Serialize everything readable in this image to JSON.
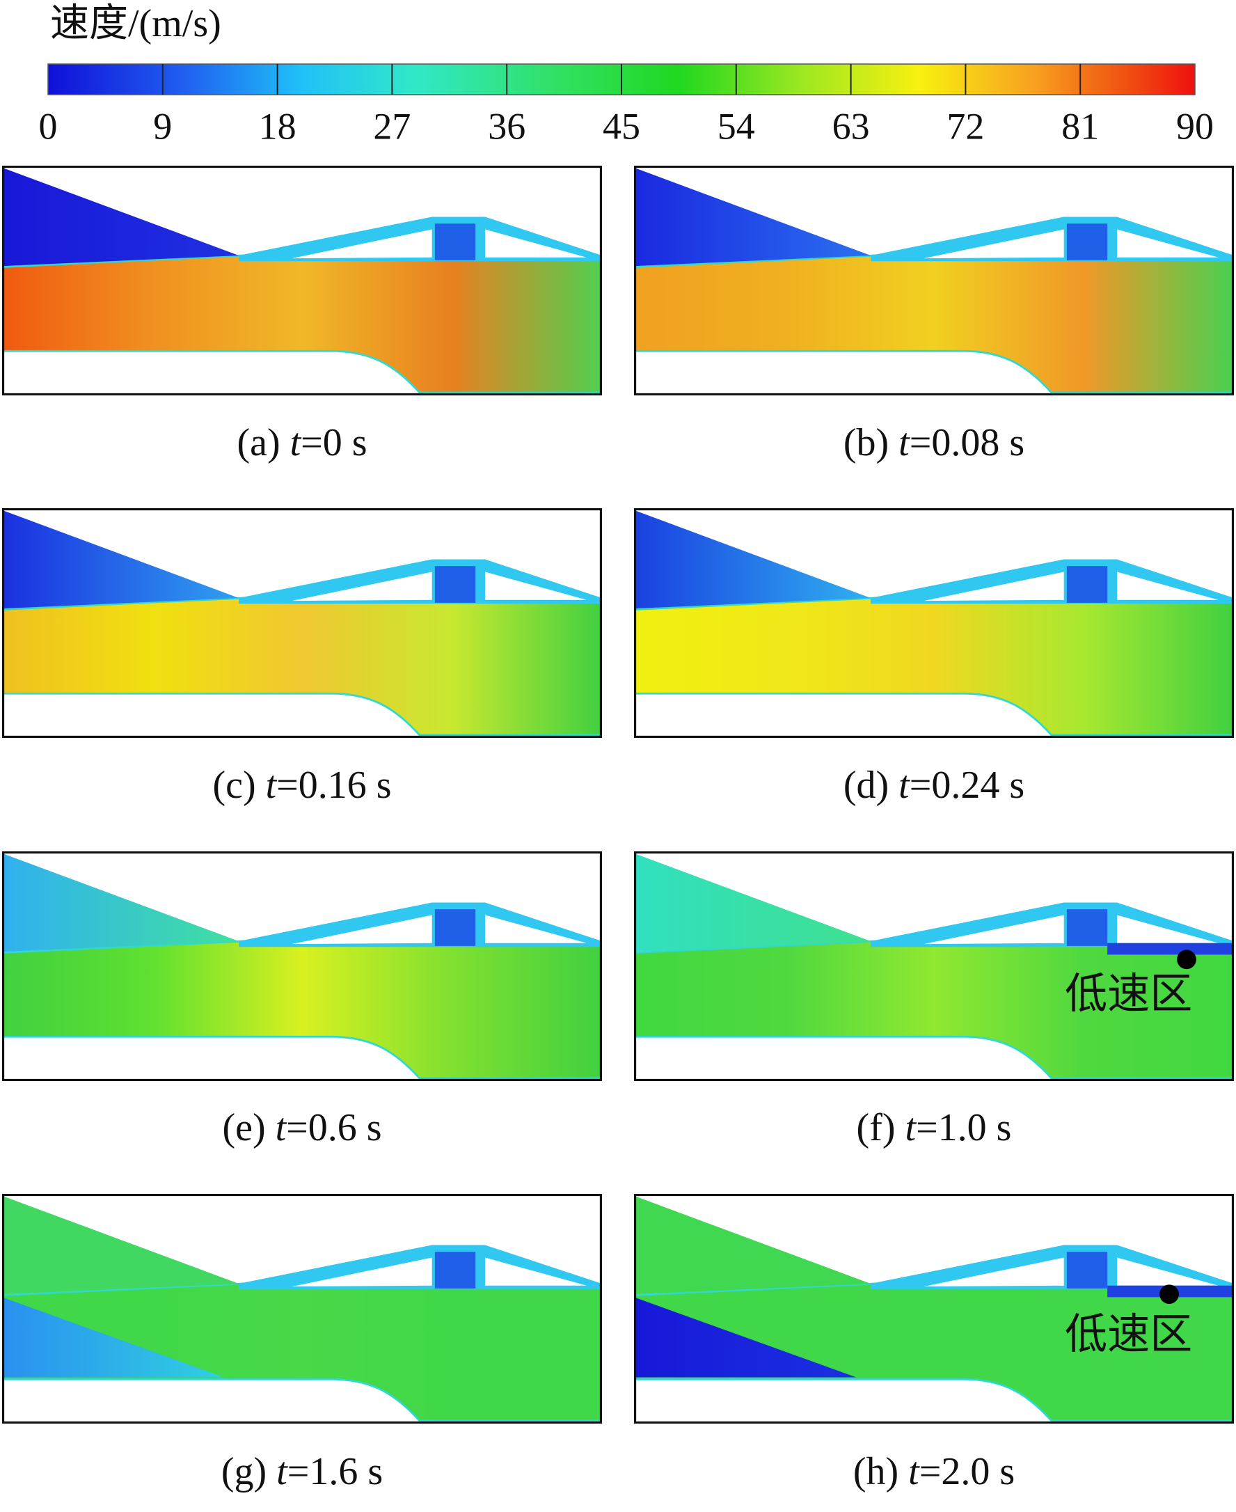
{
  "colorbar": {
    "title": "速度/(m/s)",
    "range": [
      0,
      90
    ],
    "ticks": [
      0,
      9,
      18,
      27,
      36,
      45,
      54,
      63,
      72,
      81,
      90
    ]
  },
  "panels": [
    {
      "caption": "(a) t=0 s"
    },
    {
      "caption": "(b) t=0.08 s"
    },
    {
      "caption": "(c) t=0.16 s"
    },
    {
      "caption": "(d) t=0.24 s"
    },
    {
      "caption": "(e) t=0.6 s"
    },
    {
      "caption": "(f) t=1.0 s",
      "annotation": "低速区"
    },
    {
      "caption": "(g) t=1.6 s"
    },
    {
      "caption": "(h) t=2.0 s",
      "annotation": "低速区"
    }
  ]
}
